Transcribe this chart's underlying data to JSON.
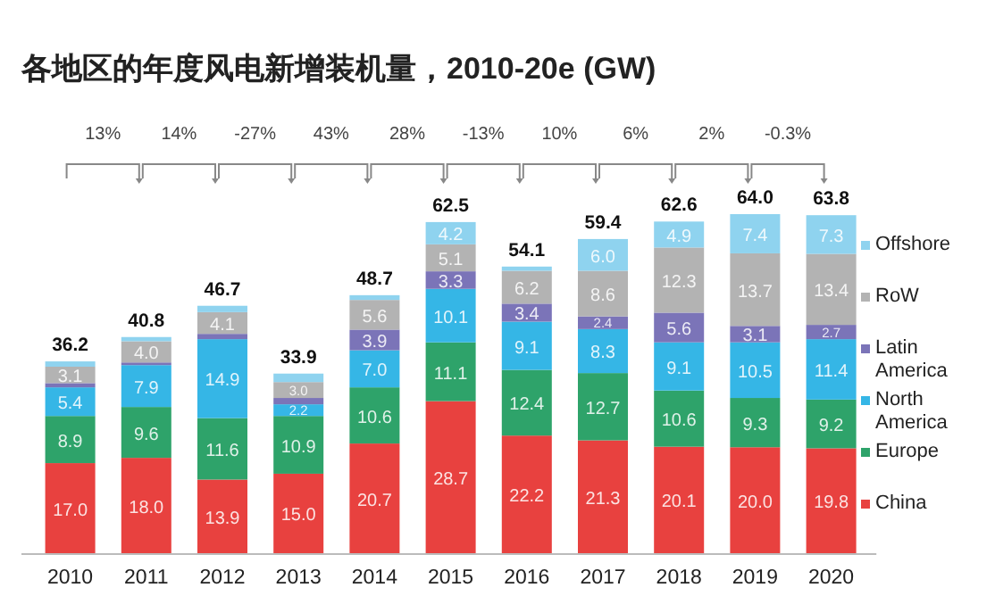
{
  "chart_data": {
    "type": "bar",
    "stacked": true,
    "title": "各地区的年度风电新增装机量，2010-20e (GW)",
    "categories": [
      "2010",
      "2011",
      "2012",
      "2013",
      "2014",
      "2015",
      "2016",
      "2017",
      "2018",
      "2019",
      "2020"
    ],
    "series": [
      {
        "name": "China",
        "color": "#e8413f",
        "values": [
          17.0,
          18.0,
          13.9,
          15.0,
          20.7,
          28.7,
          22.2,
          21.3,
          20.1,
          20.0,
          19.8
        ],
        "value_labels": [
          "17.0",
          "18.0",
          "13.9",
          "15.0",
          "20.7",
          "28.7",
          "22.2",
          "21.3",
          "20.1",
          "20.0",
          "19.8"
        ]
      },
      {
        "name": "Europe",
        "color": "#2ea36a",
        "values": [
          8.9,
          9.6,
          11.6,
          10.9,
          10.6,
          11.1,
          12.4,
          12.7,
          10.6,
          9.3,
          9.2
        ],
        "value_labels": [
          "8.9",
          "9.6",
          "11.6",
          "10.9",
          "10.6",
          "11.1",
          "12.4",
          "12.7",
          "10.6",
          "9.3",
          "9.2"
        ]
      },
      {
        "name": "North America",
        "color": "#35b6e6",
        "values": [
          5.4,
          7.9,
          14.9,
          2.2,
          7.0,
          10.1,
          9.1,
          8.3,
          9.1,
          10.5,
          11.4
        ],
        "value_labels": [
          "5.4",
          "7.9",
          "14.9",
          "2.2",
          "7.0",
          "10.1",
          "9.1",
          "8.3",
          "9.1",
          "10.5",
          "11.4"
        ]
      },
      {
        "name": "Latin America",
        "color": "#7b74b8",
        "values": [
          0.8,
          0.5,
          1.0,
          1.2,
          3.9,
          3.3,
          3.4,
          2.4,
          5.6,
          3.1,
          2.7
        ],
        "value_labels": [
          null,
          null,
          null,
          null,
          "3.9",
          "3.3",
          "3.4",
          "2.4",
          "5.6",
          "3.1",
          "2.7"
        ]
      },
      {
        "name": "RoW",
        "color": "#b3b3b3",
        "values": [
          3.1,
          4.0,
          4.1,
          3.0,
          5.6,
          5.1,
          6.2,
          8.6,
          12.3,
          13.7,
          13.4
        ],
        "value_labels": [
          "3.1",
          "4.0",
          "4.1",
          "3.0",
          "5.6",
          "5.1",
          "6.2",
          "8.6",
          "12.3",
          "13.7",
          "13.4"
        ]
      },
      {
        "name": "Offshore",
        "color": "#8fd3ef",
        "values": [
          1.0,
          0.8,
          1.2,
          1.6,
          0.9,
          4.2,
          0.8,
          6.0,
          4.9,
          7.4,
          7.3
        ],
        "value_labels": [
          null,
          null,
          null,
          null,
          null,
          "4.2",
          null,
          "6.0",
          "4.9",
          "7.4",
          "7.3"
        ]
      }
    ],
    "totals": [
      "36.2",
      "40.8",
      "46.7",
      "33.9",
      "48.7",
      "62.5",
      "54.1",
      "59.4",
      "62.6",
      "64.0",
      "63.8"
    ],
    "annotations": [
      "13%",
      "14%",
      "-27%",
      "43%",
      "28%",
      "-13%",
      "10%",
      "6%",
      "2%",
      "-0.3%"
    ],
    "legend": "right"
  }
}
